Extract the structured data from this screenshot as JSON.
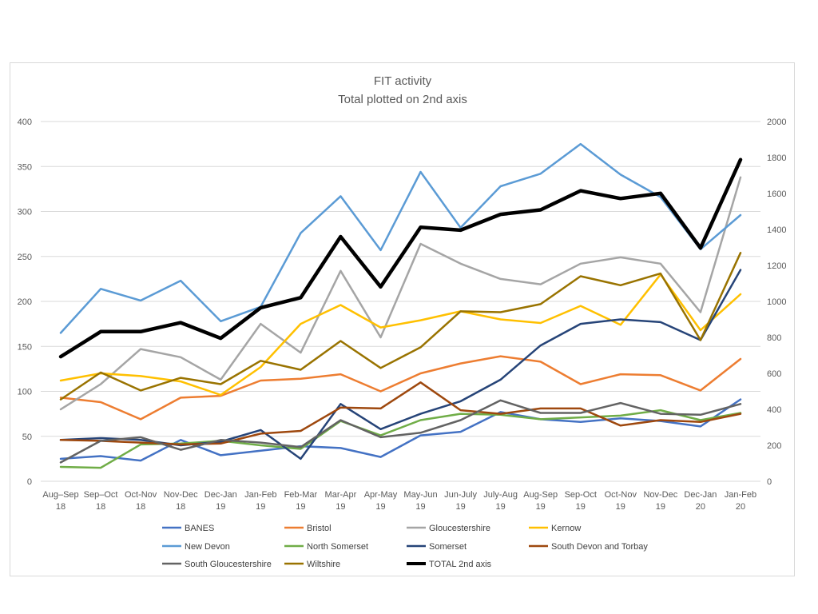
{
  "chart_data": {
    "type": "line",
    "title": "FIT activity",
    "subtitle": "Total plotted on 2nd axis",
    "ylim": [
      0,
      400
    ],
    "y2lim": [
      0,
      2000
    ],
    "yticks": [
      "0",
      "50",
      "100",
      "150",
      "200",
      "250",
      "300",
      "350",
      "400"
    ],
    "y2ticks": [
      "0",
      "200",
      "400",
      "600",
      "800",
      "1000",
      "1200",
      "1400",
      "1600",
      "1800",
      "2000"
    ],
    "grid": true,
    "legend_position": "bottom",
    "categories": [
      [
        "Aug–Sep",
        "18"
      ],
      [
        "Sep–Oct",
        "18"
      ],
      [
        "Oct-Nov",
        "18"
      ],
      [
        "Nov-Dec",
        "18"
      ],
      [
        "Dec-Jan",
        "19"
      ],
      [
        "Jan-Feb",
        "19"
      ],
      [
        "Feb-Mar",
        "19"
      ],
      [
        "Mar-Apr",
        "19"
      ],
      [
        "Apr-May",
        "19"
      ],
      [
        "May-Jun",
        "19"
      ],
      [
        "Jun-July",
        "19"
      ],
      [
        "July-Aug",
        "19"
      ],
      [
        "Aug-Sep",
        "19"
      ],
      [
        "Sep-Oct",
        "19"
      ],
      [
        "Oct-Nov",
        "19"
      ],
      [
        "Nov-Dec",
        "19"
      ],
      [
        "Dec-Jan",
        "20"
      ],
      [
        "Jan-Feb",
        "20"
      ]
    ],
    "series": [
      {
        "name": "BANES",
        "color": "#4472C4",
        "width": 2.5,
        "axis": "left",
        "values": [
          25,
          28,
          23,
          46,
          29,
          34,
          39,
          37,
          27,
          51,
          55,
          77,
          69,
          66,
          70,
          67,
          61,
          91
        ]
      },
      {
        "name": "Bristol",
        "color": "#ED7D31",
        "width": 2.5,
        "axis": "left",
        "values": [
          93,
          88,
          69,
          93,
          95,
          112,
          114,
          119,
          100,
          120,
          131,
          139,
          133,
          108,
          119,
          118,
          101,
          136
        ]
      },
      {
        "name": "Gloucestershire",
        "color": "#A5A5A5",
        "width": 2.5,
        "axis": "left",
        "values": [
          80,
          108,
          147,
          138,
          113,
          175,
          143,
          234,
          160,
          264,
          242,
          225,
          219,
          242,
          249,
          242,
          188,
          338
        ]
      },
      {
        "name": "Kernow",
        "color": "#FFC000",
        "width": 2.5,
        "axis": "left",
        "values": [
          112,
          120,
          117,
          111,
          96,
          127,
          175,
          196,
          171,
          179,
          189,
          180,
          176,
          195,
          174,
          230,
          168,
          208
        ]
      },
      {
        "name": "New Devon",
        "color": "#5B9BD5",
        "width": 2.5,
        "axis": "left",
        "values": [
          165,
          214,
          201,
          223,
          178,
          194,
          276,
          317,
          257,
          344,
          282,
          328,
          342,
          375,
          341,
          316,
          258,
          296
        ]
      },
      {
        "name": "North Somerset",
        "color": "#70AD47",
        "width": 2.5,
        "axis": "left",
        "values": [
          16,
          15,
          41,
          42,
          45,
          40,
          36,
          67,
          51,
          68,
          75,
          74,
          69,
          71,
          73,
          79,
          68,
          76
        ]
      },
      {
        "name": "Somerset",
        "color": "#264478",
        "width": 2.5,
        "axis": "left",
        "values": [
          46,
          48,
          46,
          40,
          44,
          57,
          25,
          86,
          58,
          75,
          89,
          113,
          151,
          175,
          180,
          177,
          157,
          235
        ]
      },
      {
        "name": "South Devon and Torbay",
        "color": "#9E480E",
        "width": 2.5,
        "axis": "left",
        "values": [
          46,
          45,
          43,
          41,
          42,
          53,
          56,
          82,
          81,
          110,
          79,
          75,
          81,
          81,
          62,
          68,
          66,
          75
        ]
      },
      {
        "name": "South Gloucestershire",
        "color": "#636363",
        "width": 2.5,
        "axis": "left",
        "values": [
          21,
          45,
          49,
          35,
          46,
          43,
          38,
          68,
          49,
          54,
          68,
          90,
          76,
          76,
          87,
          75,
          74,
          86
        ]
      },
      {
        "name": "Wiltshire",
        "color": "#997300",
        "width": 2.5,
        "axis": "left",
        "values": [
          91,
          121,
          101,
          115,
          108,
          134,
          124,
          156,
          126,
          149,
          189,
          188,
          197,
          228,
          218,
          231,
          157,
          254
        ]
      },
      {
        "name": "TOTAL 2nd axis",
        "color": "#000000",
        "width": 4.5,
        "axis": "right",
        "values": [
          693,
          832,
          832,
          882,
          795,
          965,
          1021,
          1360,
          1081,
          1412,
          1396,
          1484,
          1509,
          1615,
          1572,
          1601,
          1297,
          1788
        ]
      }
    ]
  }
}
